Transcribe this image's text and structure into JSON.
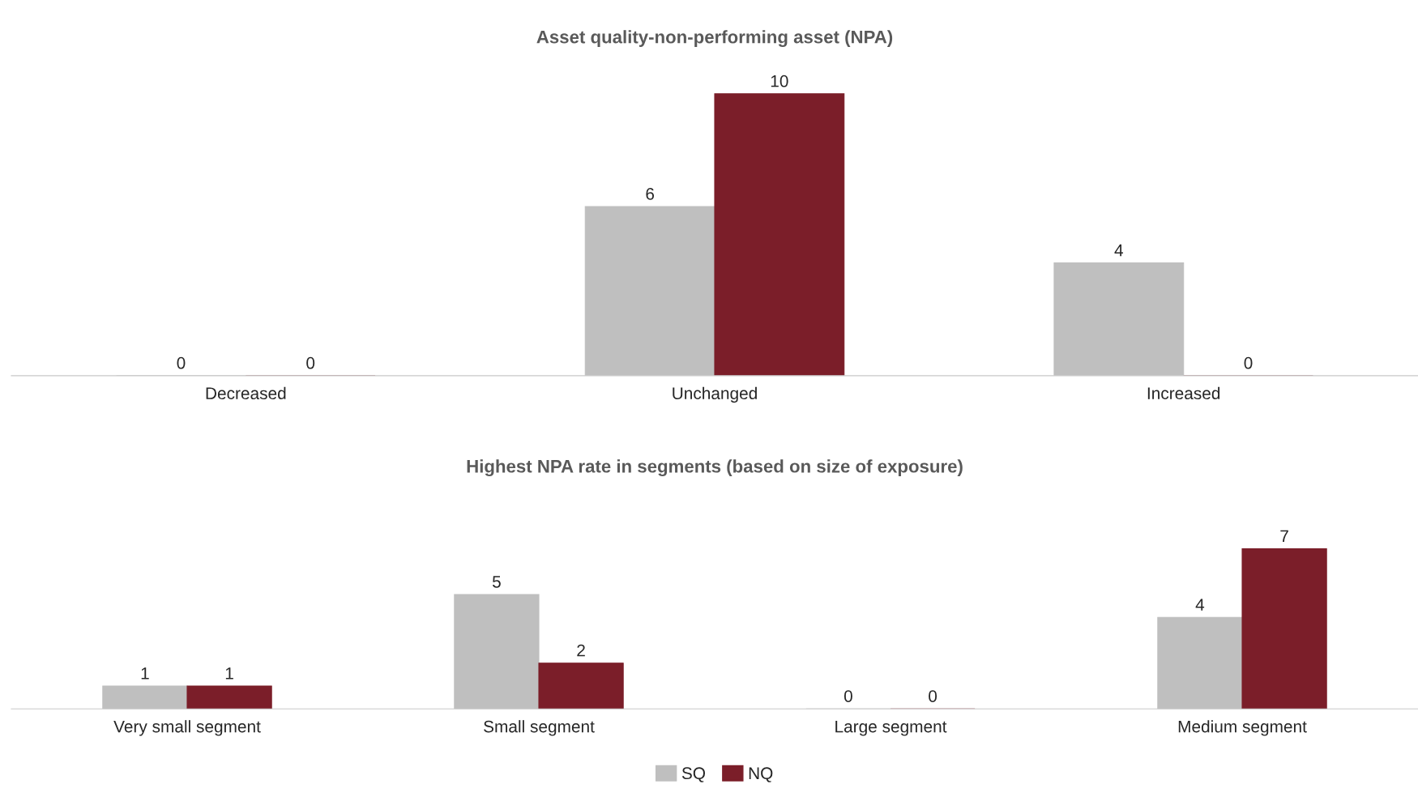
{
  "chart_data": [
    {
      "type": "bar",
      "title": "Asset quality-non-performing asset (NPA)",
      "categories": [
        "Decreased",
        "Unchanged",
        "Increased"
      ],
      "data_labels": true,
      "legend": false,
      "series": [
        {
          "color": "#bfbfbf",
          "values": [
            0,
            6,
            4
          ]
        },
        {
          "color": "#7b1e29",
          "values": [
            0,
            10,
            0
          ]
        }
      ]
    },
    {
      "type": "bar",
      "title": "Highest NPA rate in segments (based on size of exposure)",
      "categories": [
        "Very small segment",
        "Small segment",
        "Large segment",
        "Medium segment"
      ],
      "data_labels": true,
      "legend": "bottom",
      "series": [
        {
          "name": "SQ",
          "color": "#bfbfbf",
          "values": [
            1,
            5,
            0,
            4
          ]
        },
        {
          "name": "NQ",
          "color": "#7b1e29",
          "values": [
            1,
            2,
            0,
            7
          ]
        }
      ]
    }
  ]
}
